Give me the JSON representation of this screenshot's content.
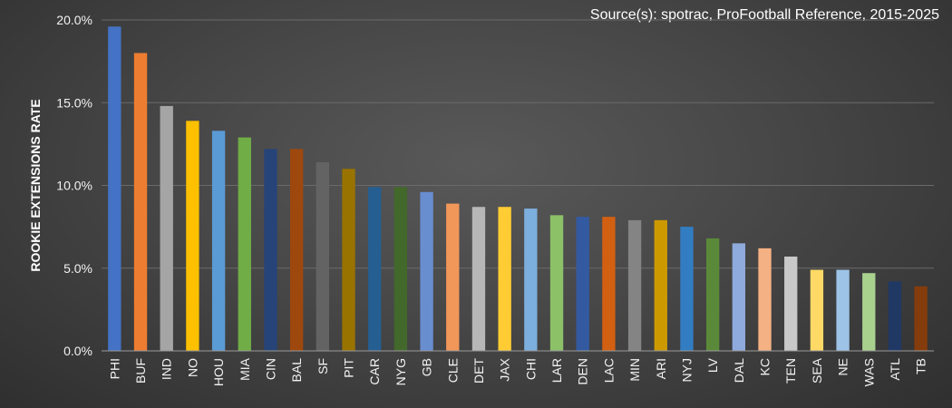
{
  "source_text": "Source(s): spotrac, ProFootball Reference,  2015-2025",
  "chart_data": {
    "type": "bar",
    "ylabel": "ROOKIE EXTENSIONS RATE",
    "ylim": [
      0,
      20
    ],
    "yticks": [
      0,
      5,
      10,
      15,
      20
    ],
    "ytick_labels": [
      "0.0%",
      "5.0%",
      "10.0%",
      "15.0%",
      "20.0%"
    ],
    "grid": true,
    "categories": [
      "PHI",
      "BUF",
      "IND",
      "NO",
      "HOU",
      "MIA",
      "CIN",
      "BAL",
      "SF",
      "PIT",
      "CAR",
      "NYG",
      "GB",
      "CLE",
      "DET",
      "JAX",
      "CHI",
      "LAR",
      "DEN",
      "LAC",
      "MIN",
      "ARI",
      "NYJ",
      "LV",
      "DAL",
      "KC",
      "TEN",
      "SEA",
      "NE",
      "WAS",
      "ATL",
      "TB"
    ],
    "values": [
      19.6,
      18.0,
      14.8,
      13.9,
      13.3,
      12.9,
      12.2,
      12.2,
      11.4,
      11.0,
      9.9,
      9.9,
      9.6,
      8.9,
      8.7,
      8.7,
      8.6,
      8.2,
      8.1,
      8.1,
      7.9,
      7.9,
      7.5,
      6.8,
      6.5,
      6.2,
      5.7,
      4.9,
      4.9,
      4.7,
      4.2,
      3.9
    ],
    "colors": [
      "#4472c4",
      "#ed7d31",
      "#a5a5a5",
      "#ffc000",
      "#5b9bd5",
      "#70ad47",
      "#264478",
      "#9e480e",
      "#636363",
      "#997300",
      "#255e91",
      "#43682b",
      "#698ed0",
      "#f1975a",
      "#b7b7b7",
      "#ffcd33",
      "#7cafdd",
      "#8cc168",
      "#335aa1",
      "#d26012",
      "#848484",
      "#cc9a00",
      "#327dc2",
      "#5a8a39",
      "#8faadc",
      "#f4b183",
      "#c9c9c9",
      "#ffd966",
      "#9dc3e6",
      "#a9d18e",
      "#203864",
      "#843c0c"
    ]
  }
}
